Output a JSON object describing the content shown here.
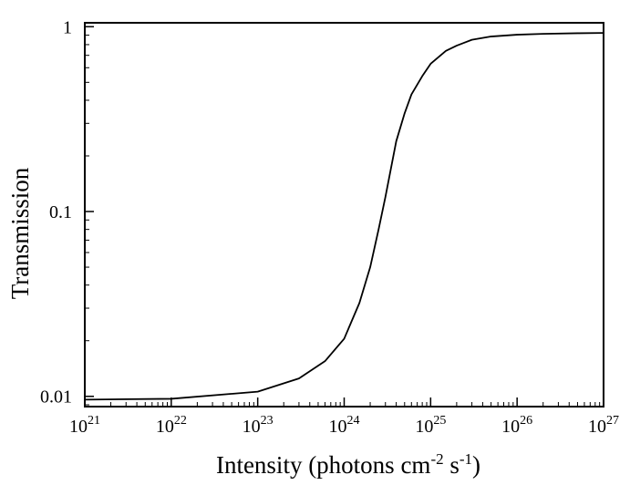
{
  "chart_data": {
    "type": "line",
    "title": "",
    "xlabel": {
      "prefix": "Intensity (photons cm",
      "sup1": "-2",
      "mid": " s",
      "sup2": "-1",
      "suffix": ")"
    },
    "ylabel": "Transmission",
    "x_scale": "log",
    "y_scale": "log",
    "xlim": [
      1e+21,
      1e+27
    ],
    "ylim": [
      0.0088,
      1.05
    ],
    "x_ticks": [
      {
        "value": 1e+21,
        "base": "10",
        "exp": "21"
      },
      {
        "value": 1e+22,
        "base": "10",
        "exp": "22"
      },
      {
        "value": 1e+23,
        "base": "10",
        "exp": "23"
      },
      {
        "value": 1e+24,
        "base": "10",
        "exp": "24"
      },
      {
        "value": 1e+25,
        "base": "10",
        "exp": "25"
      },
      {
        "value": 1e+26,
        "base": "10",
        "exp": "26"
      },
      {
        "value": 1e+27,
        "base": "10",
        "exp": "27"
      }
    ],
    "y_ticks": [
      {
        "value": 0.01,
        "label": "0.01"
      },
      {
        "value": 0.1,
        "label": "0.1"
      },
      {
        "value": 1,
        "label": "1"
      }
    ],
    "grid": false,
    "legend": "none",
    "series": [
      {
        "color": "#000000",
        "x": [
          1e+21,
          1e+22,
          1e+23,
          3e+23,
          6e+23,
          1e+24,
          1.5e+24,
          2e+24,
          2.5e+24,
          3e+24,
          4e+24,
          5e+24,
          6e+24,
          8e+24,
          1e+25,
          1.5e+25,
          2e+25,
          3e+25,
          5e+25,
          1e+26,
          2e+26,
          5e+26,
          1e+27
        ],
        "y": [
          0.0096,
          0.0097,
          0.0106,
          0.0125,
          0.0155,
          0.0205,
          0.032,
          0.05,
          0.08,
          0.12,
          0.24,
          0.34,
          0.43,
          0.54,
          0.63,
          0.74,
          0.79,
          0.85,
          0.885,
          0.905,
          0.915,
          0.922,
          0.925
        ]
      }
    ]
  }
}
